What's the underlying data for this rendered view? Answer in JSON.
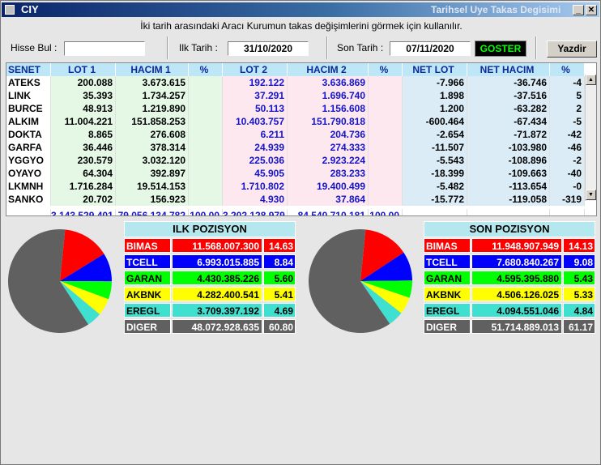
{
  "window": {
    "title": "CIY",
    "subtitle": "Tarihsel Uye Takas Degisimi"
  },
  "hint": "İki tarih arasındaki  Aracı Kurumun takas değişimlerini görmek için kullanılır.",
  "toolbar": {
    "search_label": "Hisse Bul :",
    "search_value": "",
    "start_label": "Ilk Tarih :",
    "start_value": "31/10/2020",
    "end_label": "Son Tarih :",
    "end_value": "07/11/2020",
    "goster_label": "GOSTER",
    "yazdir_label": "Yazdir"
  },
  "table": {
    "columns": [
      "SENET",
      "LOT 1",
      "HACIM 1",
      "%",
      "LOT 2",
      "HACIM 2",
      "%",
      "NET LOT",
      "NET HACIM",
      "%"
    ],
    "rows": [
      [
        "ATEKS",
        "200.088",
        "3.673.615",
        "",
        "192.122",
        "3.636.869",
        "",
        "-7.966",
        "-36.746",
        "-4"
      ],
      [
        "LINK",
        "35.393",
        "1.734.257",
        "",
        "37.291",
        "1.696.740",
        "",
        "1.898",
        "-37.516",
        "5"
      ],
      [
        "BURCE",
        "48.913",
        "1.219.890",
        "",
        "50.113",
        "1.156.608",
        "",
        "1.200",
        "-63.282",
        "2"
      ],
      [
        "ALKIM",
        "11.004.221",
        "151.858.253",
        "",
        "10.403.757",
        "151.790.818",
        "",
        "-600.464",
        "-67.434",
        "-5"
      ],
      [
        "DOKTA",
        "8.865",
        "276.608",
        "",
        "6.211",
        "204.736",
        "",
        "-2.654",
        "-71.872",
        "-42"
      ],
      [
        "GARFA",
        "36.446",
        "378.314",
        "",
        "24.939",
        "274.333",
        "",
        "-11.507",
        "-103.980",
        "-46"
      ],
      [
        "YGGYO",
        "230.579",
        "3.032.120",
        "",
        "225.036",
        "2.923.224",
        "",
        "-5.543",
        "-108.896",
        "-2"
      ],
      [
        "OYAYO",
        "64.304",
        "392.897",
        "",
        "45.905",
        "283.233",
        "",
        "-18.399",
        "-109.663",
        "-40"
      ],
      [
        "LKMNH",
        "1.716.284",
        "19.514.153",
        "",
        "1.710.802",
        "19.400.499",
        "",
        "-5.482",
        "-113.654",
        "-0"
      ],
      [
        "SANKO",
        "20.702",
        "156.923",
        "",
        "4.930",
        "37.864",
        "",
        "-15.772",
        "-119.058",
        "-319"
      ]
    ],
    "totals": [
      "",
      "3.143.529.401",
      "79.056.134.782",
      "100,00",
      "3.202.128.979",
      "84.540.710.181",
      "100,00",
      "",
      "",
      ""
    ]
  },
  "ilk": {
    "title": "ILK POZISYON",
    "items": [
      {
        "name": "BIMAS",
        "value": "11.568.007.300",
        "pct": "14.63",
        "share": 14.63,
        "color": "#ff0000",
        "text": "#ffffff"
      },
      {
        "name": "TCELL",
        "value": "6.993.015.885",
        "pct": "8.84",
        "share": 8.84,
        "color": "#0000ff",
        "text": "#ffffff"
      },
      {
        "name": "GARAN",
        "value": "4.430.385.226",
        "pct": "5.60",
        "share": 5.6,
        "color": "#00ff00",
        "text": "#000000"
      },
      {
        "name": "AKBNK",
        "value": "4.282.400.541",
        "pct": "5.41",
        "share": 5.41,
        "color": "#ffff00",
        "text": "#000000"
      },
      {
        "name": "EREGL",
        "value": "3.709.397.192",
        "pct": "4.69",
        "share": 4.69,
        "color": "#40e0d0",
        "text": "#000000"
      },
      {
        "name": "DIGER",
        "value": "48.072.928.635",
        "pct": "60.80",
        "share": 60.8,
        "color": "#606060",
        "text": "#ffffff"
      }
    ]
  },
  "son": {
    "title": "SON POZISYON",
    "items": [
      {
        "name": "BIMAS",
        "value": "11.948.907.949",
        "pct": "14.13",
        "share": 14.13,
        "color": "#ff0000",
        "text": "#ffffff"
      },
      {
        "name": "TCELL",
        "value": "7.680.840.267",
        "pct": "9.08",
        "share": 9.08,
        "color": "#0000ff",
        "text": "#ffffff"
      },
      {
        "name": "GARAN",
        "value": "4.595.395.880",
        "pct": "5.43",
        "share": 5.43,
        "color": "#00ff00",
        "text": "#000000"
      },
      {
        "name": "AKBNK",
        "value": "4.506.126.025",
        "pct": "5.33",
        "share": 5.33,
        "color": "#ffff00",
        "text": "#000000"
      },
      {
        "name": "EREGL",
        "value": "4.094.551.046",
        "pct": "4.84",
        "share": 4.84,
        "color": "#40e0d0",
        "text": "#000000"
      },
      {
        "name": "DIGER",
        "value": "51.714.889.013",
        "pct": "61.17",
        "share": 61.17,
        "color": "#606060",
        "text": "#ffffff"
      }
    ]
  }
}
